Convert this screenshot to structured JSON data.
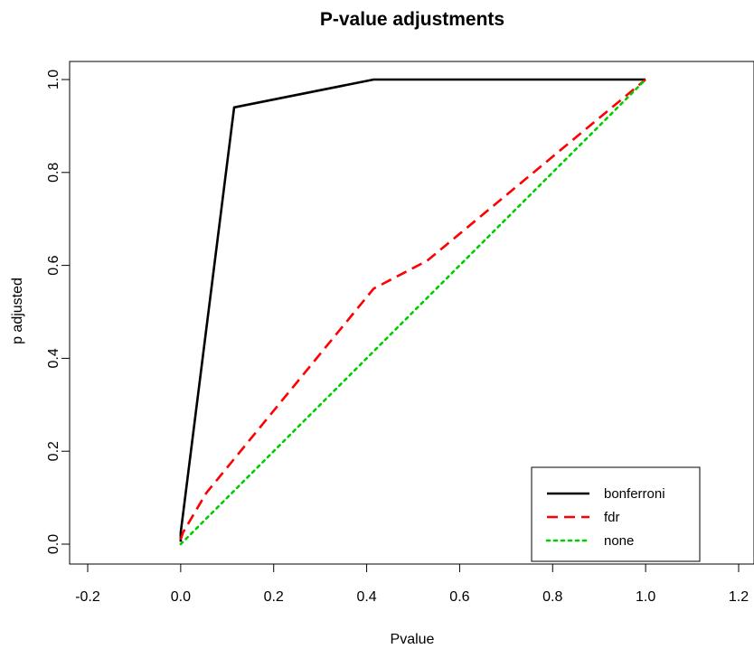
{
  "chart_data": {
    "type": "line",
    "title": "P-value adjustments",
    "xlabel": "Pvalue",
    "ylabel": "p adjusted",
    "xlim": [
      -0.2,
      1.2
    ],
    "ylim": [
      0.0,
      1.0
    ],
    "xticks": [
      "-0.2",
      "0.0",
      "0.2",
      "0.4",
      "0.6",
      "0.8",
      "1.0",
      "1.2"
    ],
    "yticks": [
      "0.0",
      "0.2",
      "0.4",
      "0.6",
      "0.8",
      "1.0"
    ],
    "grid": false,
    "legend_position": "bottom-right",
    "series": [
      {
        "name": "bonferroni",
        "color": "#000000",
        "dash": "solid",
        "x": [
          0.0,
          0.0,
          0.115,
          0.415,
          1.0
        ],
        "y": [
          0.005,
          0.025,
          0.94,
          1.0,
          1.0
        ]
      },
      {
        "name": "fdr",
        "color": "#ff0000",
        "dash": "dashed",
        "x": [
          0.0,
          0.005,
          0.055,
          0.415,
          0.53,
          1.0
        ],
        "y": [
          0.01,
          0.025,
          0.11,
          0.55,
          0.61,
          1.0
        ]
      },
      {
        "name": "none",
        "color": "#00cc00",
        "dash": "dotted",
        "x": [
          0.0,
          1.0
        ],
        "y": [
          0.0,
          1.0
        ]
      }
    ]
  }
}
